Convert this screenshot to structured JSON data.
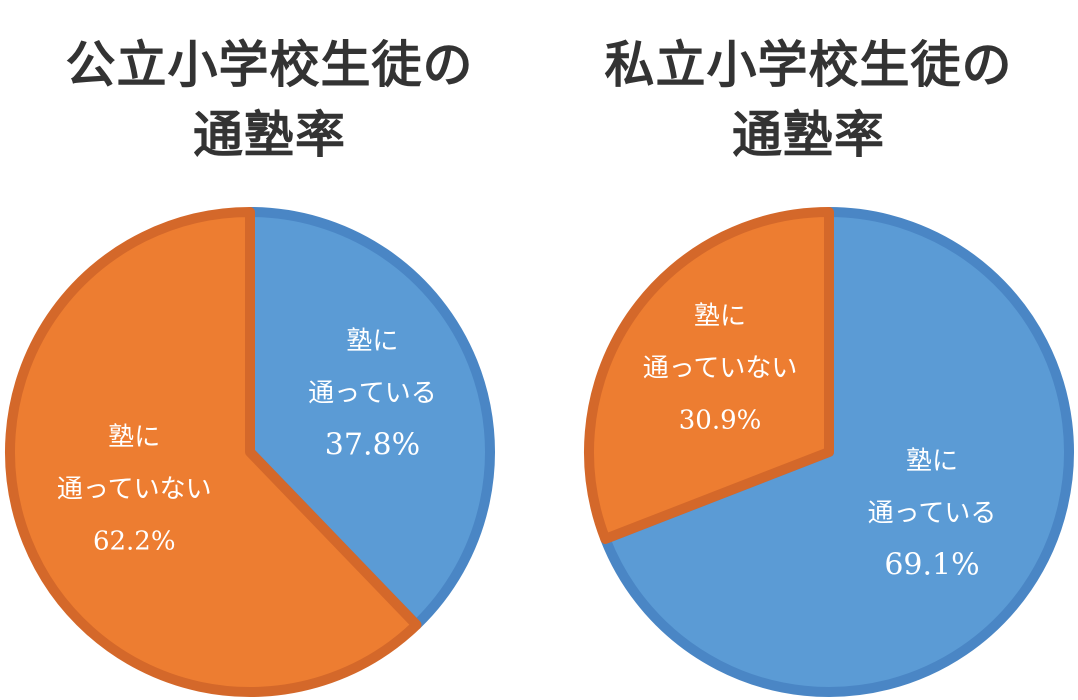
{
  "chart_data": [
    {
      "type": "pie",
      "title_lines": [
        "公立小学校生徒の",
        "通塾率"
      ],
      "slices": [
        {
          "label_lines": [
            "塾に",
            "通っている"
          ],
          "value": 37.8,
          "value_label": "37.8%",
          "color": "#5B9BD5",
          "border": "#4A86C5"
        },
        {
          "label_lines": [
            "塾に",
            "通っていない"
          ],
          "value": 62.2,
          "value_label": "62.2%",
          "color": "#ED7D31",
          "border": "#D4682A"
        }
      ]
    },
    {
      "type": "pie",
      "title_lines": [
        "私立小学校生徒の",
        "通塾率"
      ],
      "slices": [
        {
          "label_lines": [
            "塾に",
            "通っている"
          ],
          "value": 69.1,
          "value_label": "69.1%",
          "color": "#5B9BD5",
          "border": "#4A86C5"
        },
        {
          "label_lines": [
            "塾に",
            "通っていない"
          ],
          "value": 30.9,
          "value_label": "30.9%",
          "color": "#ED7D31",
          "border": "#D4682A"
        }
      ]
    }
  ]
}
